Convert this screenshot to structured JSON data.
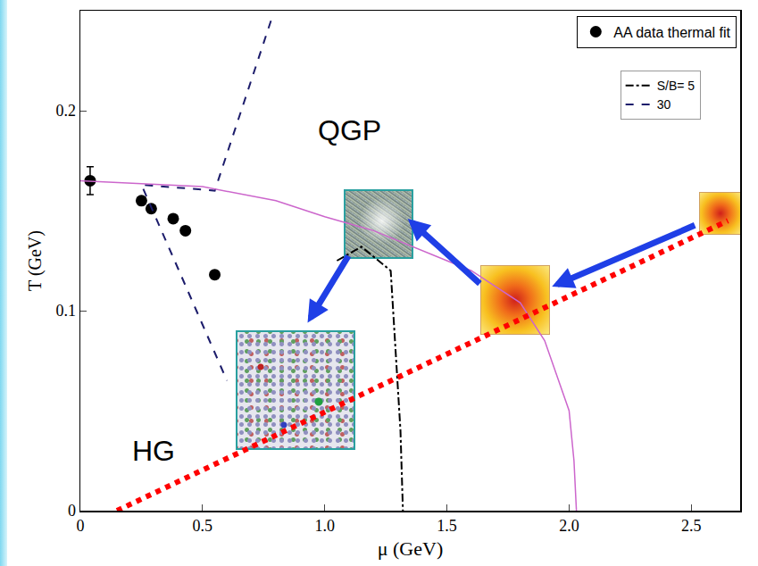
{
  "chart_data": {
    "type": "line",
    "x_label": "μ (GeV)",
    "y_label": "T (GeV)",
    "xlim": [
      0,
      2.7
    ],
    "ylim": [
      0,
      0.25
    ],
    "xticks": [
      0,
      0.5,
      {
        "value": 1,
        "label": "1.0"
      },
      1.5,
      {
        "value": 2,
        "label": "2.0"
      },
      2.5
    ],
    "yticks": [
      0,
      0.1,
      0.2
    ],
    "grid": false,
    "legend": "upper right",
    "annotations": [
      {
        "text": "QGP",
        "x": 1.1,
        "y": 0.19
      },
      {
        "text": "HG",
        "x": 0.3,
        "y": 0.03
      }
    ],
    "series": [
      {
        "name": "AA data thermal fit",
        "type": "scatter",
        "marker": "circle",
        "color": "#000000",
        "x": [
          0.04,
          0.25,
          0.29,
          0.38,
          0.43,
          0.55
        ],
        "values": [
          0.165,
          0.155,
          0.151,
          0.146,
          0.14,
          0.118
        ],
        "errors": [
          0.007,
          0,
          0,
          0,
          0,
          0
        ]
      },
      {
        "name": "S/B= 5",
        "type": "line",
        "line_style": "dashdot",
        "color": "#000000",
        "x": [
          1.05,
          1.15,
          1.27,
          1.29,
          1.31,
          1.32
        ],
        "values": [
          0.125,
          0.132,
          0.12,
          0.08,
          0.04,
          0
        ]
      },
      {
        "name": "30",
        "type": "line",
        "line_style": "dash",
        "color": "#1c1c6b",
        "x": [
          0.78,
          0.55,
          0.25,
          0.6
        ],
        "values": [
          0.245,
          0.16,
          0.163,
          0.065
        ]
      },
      {
        "type": "line",
        "line_style": "solid",
        "color": "#cc66cc",
        "x": [
          0,
          0.5,
          0.8,
          1.0,
          1.2,
          1.4,
          1.6,
          1.8,
          1.9,
          2.0,
          2.02,
          2.03
        ],
        "values": [
          0.165,
          0.162,
          0.155,
          0.147,
          0.14,
          0.13,
          0.12,
          0.104,
          0.085,
          0.05,
          0.025,
          0
        ]
      },
      {
        "type": "line",
        "line_style": "dot",
        "color": "#ff0000",
        "x": [
          0.15,
          2.65
        ],
        "values": [
          0,
          0.145
        ]
      }
    ]
  }
}
